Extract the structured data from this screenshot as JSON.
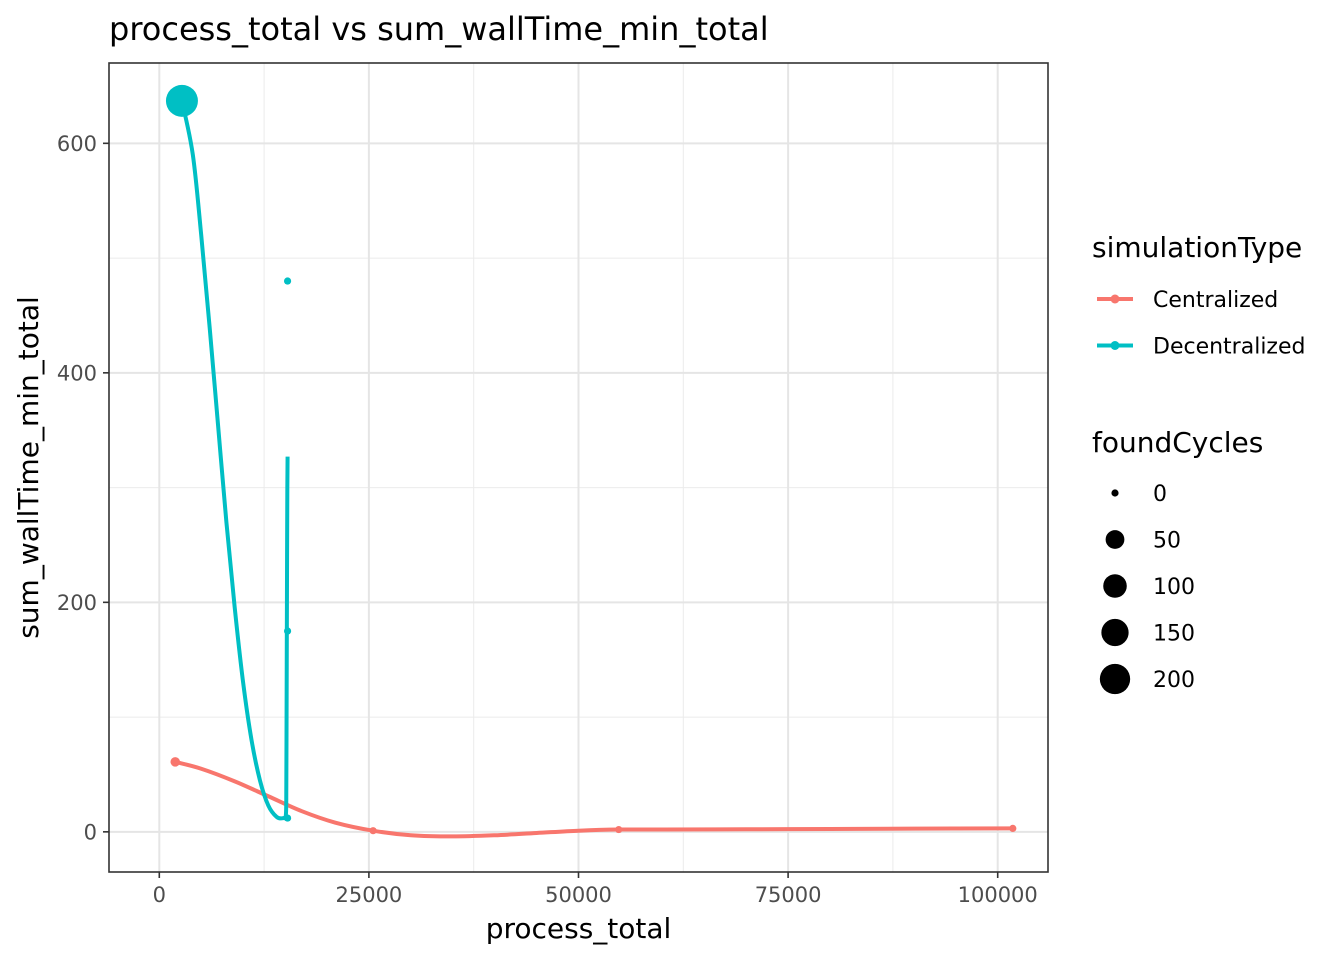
{
  "chart_data": {
    "type": "scatter",
    "title": "process_total  vs  sum_wallTime_min_total",
    "xlabel": "process_total",
    "ylabel": "sum_wallTime_min_total",
    "xlim": [
      -6000,
      106000
    ],
    "ylim": [
      -35,
      670
    ],
    "x_ticks": [
      0,
      25000,
      50000,
      75000,
      100000
    ],
    "x_tick_labels": [
      "0",
      "25000",
      "50000",
      "75000",
      "100000"
    ],
    "y_ticks": [
      0,
      200,
      400,
      600
    ],
    "y_tick_labels": [
      "0",
      "200",
      "400",
      "600"
    ],
    "grid": true,
    "legend_position": "right",
    "color_legend": {
      "title": "simulationType",
      "entries": [
        {
          "label": "Centralized",
          "color": "#F8766D"
        },
        {
          "label": "Decentralized",
          "color": "#00BFC4"
        }
      ]
    },
    "size_legend": {
      "title": "foundCycles",
      "entries": [
        {
          "label": "0",
          "value": 0
        },
        {
          "label": "50",
          "value": 50
        },
        {
          "label": "100",
          "value": 100
        },
        {
          "label": "150",
          "value": 150
        },
        {
          "label": "200",
          "value": 200
        }
      ]
    },
    "series": [
      {
        "name": "Centralized",
        "color": "#F8766D",
        "points": [
          {
            "x": 1900,
            "y": 61,
            "foundCycles": 2
          },
          {
            "x": 25500,
            "y": 1,
            "foundCycles": 0
          },
          {
            "x": 54800,
            "y": 2,
            "foundCycles": 0
          },
          {
            "x": 101800,
            "y": 3,
            "foundCycles": 0
          }
        ],
        "smooth": [
          [
            1900,
            61
          ],
          [
            5000,
            55
          ],
          [
            9000,
            44
          ],
          [
            13000,
            31
          ],
          [
            17000,
            18
          ],
          [
            21000,
            8
          ],
          [
            25500,
            1
          ],
          [
            30000,
            -3
          ],
          [
            35000,
            -4
          ],
          [
            40000,
            -3
          ],
          [
            45000,
            -1
          ],
          [
            50000,
            1
          ],
          [
            54800,
            2
          ],
          [
            60000,
            2
          ],
          [
            70000,
            2.2
          ],
          [
            80000,
            2.5
          ],
          [
            90000,
            2.8
          ],
          [
            101800,
            3
          ]
        ]
      },
      {
        "name": "Decentralized",
        "color": "#00BFC4",
        "points": [
          {
            "x": 2700,
            "y": 637,
            "foundCycles": 230
          },
          {
            "x": 15300,
            "y": 480,
            "foundCycles": 0
          },
          {
            "x": 15300,
            "y": 175,
            "foundCycles": 0
          },
          {
            "x": 15300,
            "y": 12,
            "foundCycles": 0
          }
        ],
        "smooth": [
          [
            2700,
            637
          ],
          [
            4000,
            590
          ],
          [
            5000,
            520
          ],
          [
            6000,
            440
          ],
          [
            7000,
            355
          ],
          [
            8000,
            270
          ],
          [
            9000,
            195
          ],
          [
            10000,
            130
          ],
          [
            11000,
            80
          ],
          [
            12000,
            45
          ],
          [
            13000,
            23
          ],
          [
            14000,
            13
          ],
          [
            14800,
            12
          ],
          [
            15100,
            15
          ],
          [
            15150,
            40
          ],
          [
            15180,
            100
          ],
          [
            15210,
            170
          ],
          [
            15240,
            240
          ],
          [
            15270,
            300
          ],
          [
            15300,
            327
          ]
        ]
      }
    ]
  }
}
